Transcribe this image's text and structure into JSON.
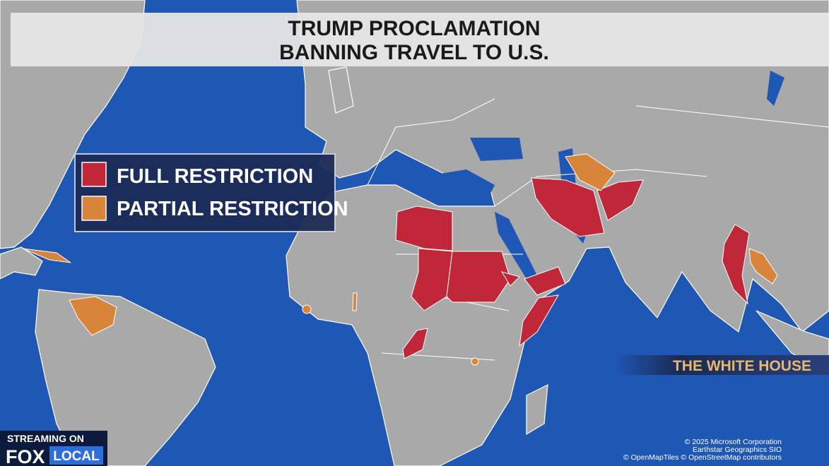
{
  "header": {
    "title": [
      "TRUMP PROCLAMATION",
      "BANNING TRAVEL TO U.S."
    ]
  },
  "legend": {
    "items": [
      {
        "label": "FULL RESTRICTION",
        "color": "#c0283a"
      },
      {
        "label": "PARTIAL RESTRICTION",
        "color": "#d8843a"
      }
    ]
  },
  "source": "THE WHITE HOUSE",
  "attribution": [
    "© 2025 Microsoft Corporation",
    "Earthstar Geographics SIO",
    "© OpenMapTiles © OpenStreetMap contributors"
  ],
  "logo": {
    "top": "STREAMING ON",
    "brand": "FOX",
    "sub": "LOCAL"
  }
}
